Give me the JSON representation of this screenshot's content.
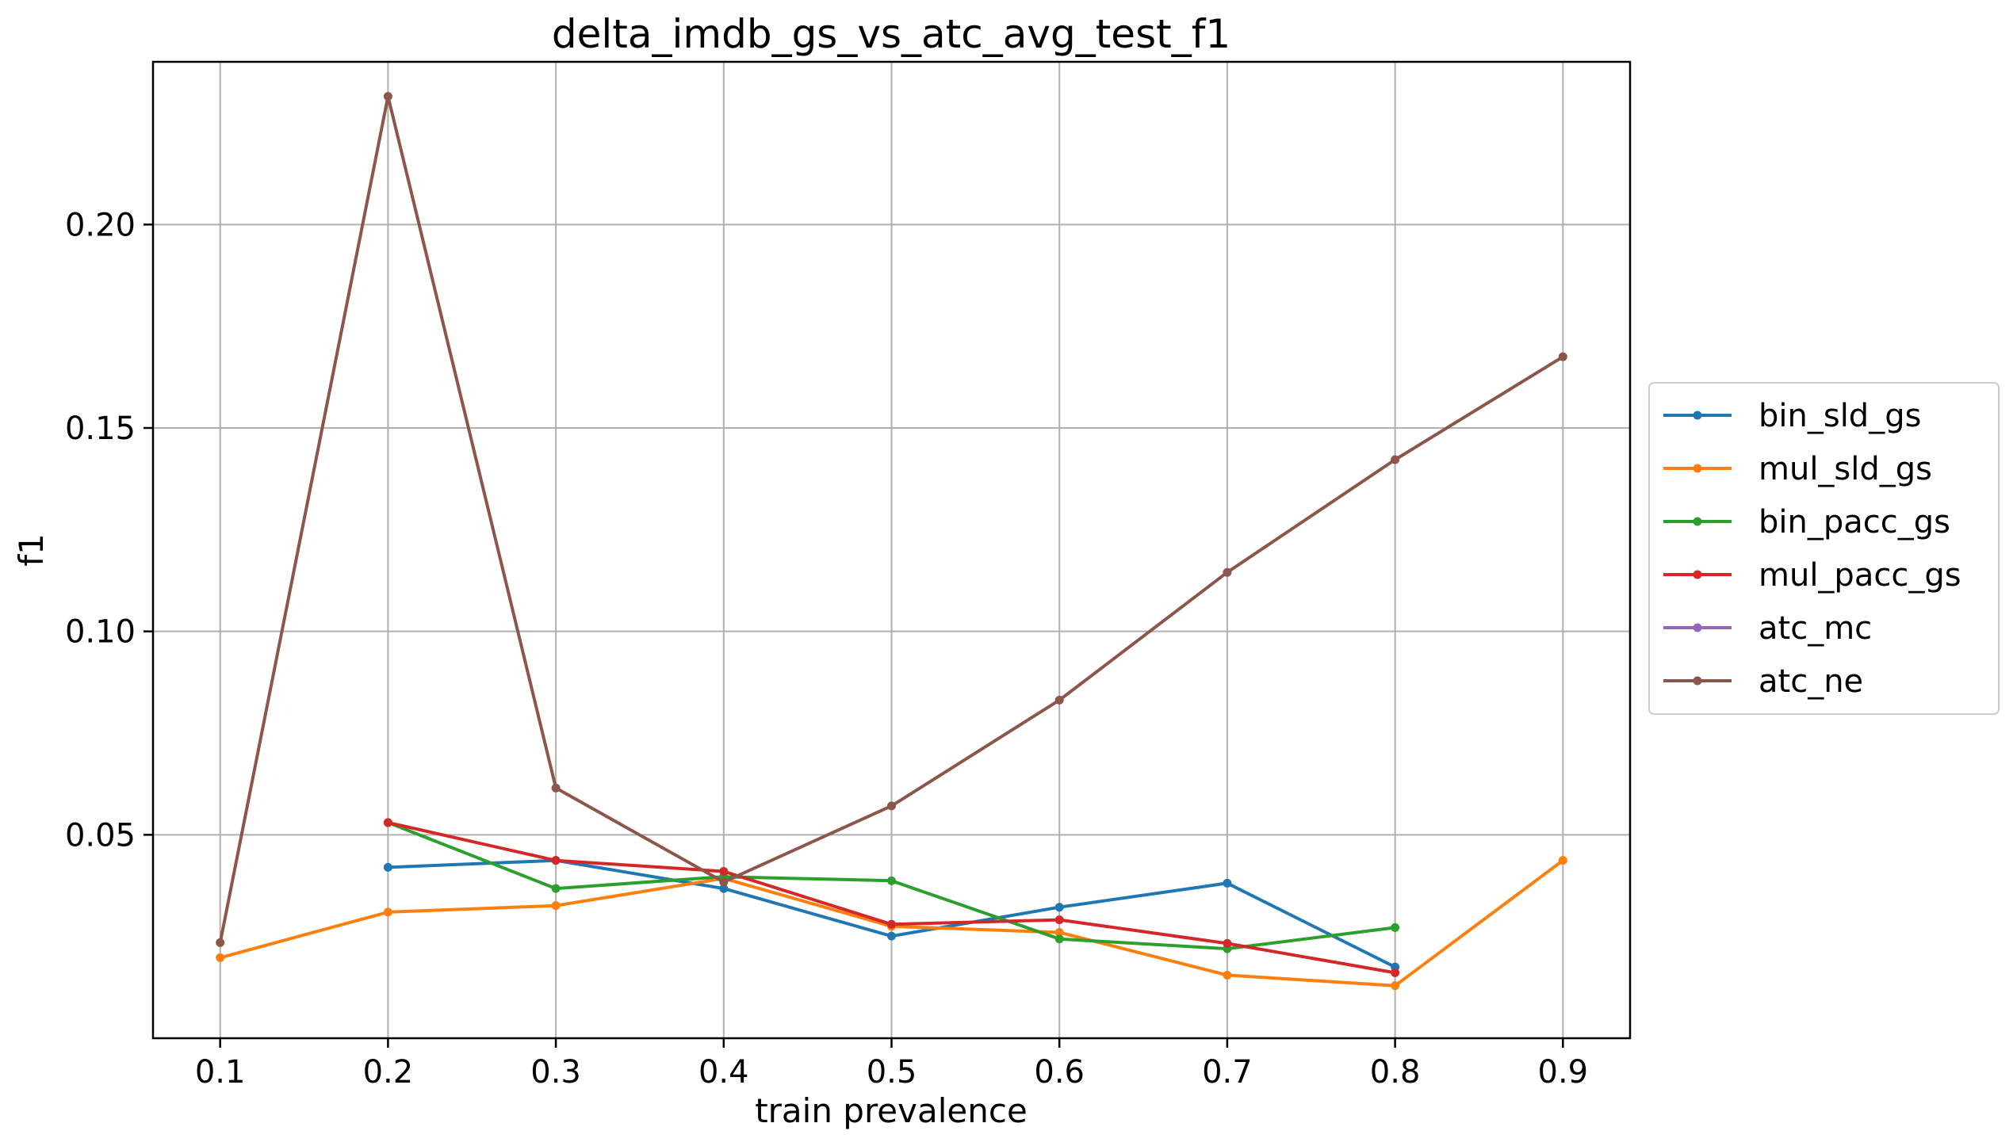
{
  "chart_data": {
    "type": "line",
    "title": "delta_imdb_gs_vs_atc_avg_test_f1",
    "xlabel": "train prevalence",
    "ylabel": "f1",
    "xlim": [
      0.06,
      0.94
    ],
    "ylim": [
      0.0,
      0.24
    ],
    "xticks": [
      0.1,
      0.2,
      0.3,
      0.4,
      0.5,
      0.6,
      0.7,
      0.8,
      0.9
    ],
    "xtick_labels": [
      "0.1",
      "0.2",
      "0.3",
      "0.4",
      "0.5",
      "0.6",
      "0.7",
      "0.8",
      "0.9"
    ],
    "yticks": [
      0.05,
      0.1,
      0.15,
      0.2
    ],
    "ytick_labels": [
      "0.05",
      "0.10",
      "0.15",
      "0.20"
    ],
    "grid": true,
    "legend_position": "center-right-outside",
    "series": [
      {
        "name": "bin_sld_gs",
        "color": "#1f77b4",
        "points": [
          [
            0.2,
            0.042
          ],
          [
            0.3,
            0.0437
          ],
          [
            0.4,
            0.0368
          ],
          [
            0.5,
            0.0251
          ],
          [
            0.6,
            0.0322
          ],
          [
            0.7,
            0.0381
          ],
          [
            0.8,
            0.0175
          ]
        ]
      },
      {
        "name": "mul_sld_gs",
        "color": "#ff7f0e",
        "points": [
          [
            0.1,
            0.0198
          ],
          [
            0.2,
            0.031
          ],
          [
            0.3,
            0.0326
          ],
          [
            0.4,
            0.0393
          ],
          [
            0.5,
            0.0275
          ],
          [
            0.6,
            0.026
          ],
          [
            0.7,
            0.0155
          ],
          [
            0.8,
            0.0129
          ],
          [
            0.9,
            0.0437
          ]
        ]
      },
      {
        "name": "bin_pacc_gs",
        "color": "#2ca02c",
        "points": [
          [
            0.2,
            0.053
          ],
          [
            0.3,
            0.0368
          ],
          [
            0.4,
            0.0397
          ],
          [
            0.5,
            0.0387
          ],
          [
            0.6,
            0.0244
          ],
          [
            0.7,
            0.022
          ],
          [
            0.8,
            0.0272
          ]
        ]
      },
      {
        "name": "mul_pacc_gs",
        "color": "#d62728",
        "points": [
          [
            0.2,
            0.053
          ],
          [
            0.3,
            0.0437
          ],
          [
            0.4,
            0.041
          ],
          [
            0.5,
            0.028
          ],
          [
            0.6,
            0.0291
          ],
          [
            0.7,
            0.0233
          ],
          [
            0.8,
            0.0161
          ]
        ]
      },
      {
        "name": "atc_mc",
        "color": "#9467bd",
        "points": []
      },
      {
        "name": "atc_ne",
        "color": "#8c564b",
        "points": [
          [
            0.1,
            0.0235
          ],
          [
            0.2,
            0.2315
          ],
          [
            0.3,
            0.0615
          ],
          [
            0.4,
            0.0384
          ],
          [
            0.5,
            0.0571
          ],
          [
            0.6,
            0.0831
          ],
          [
            0.7,
            0.1145
          ],
          [
            0.8,
            0.1422
          ],
          [
            0.9,
            0.1675
          ]
        ]
      }
    ]
  }
}
